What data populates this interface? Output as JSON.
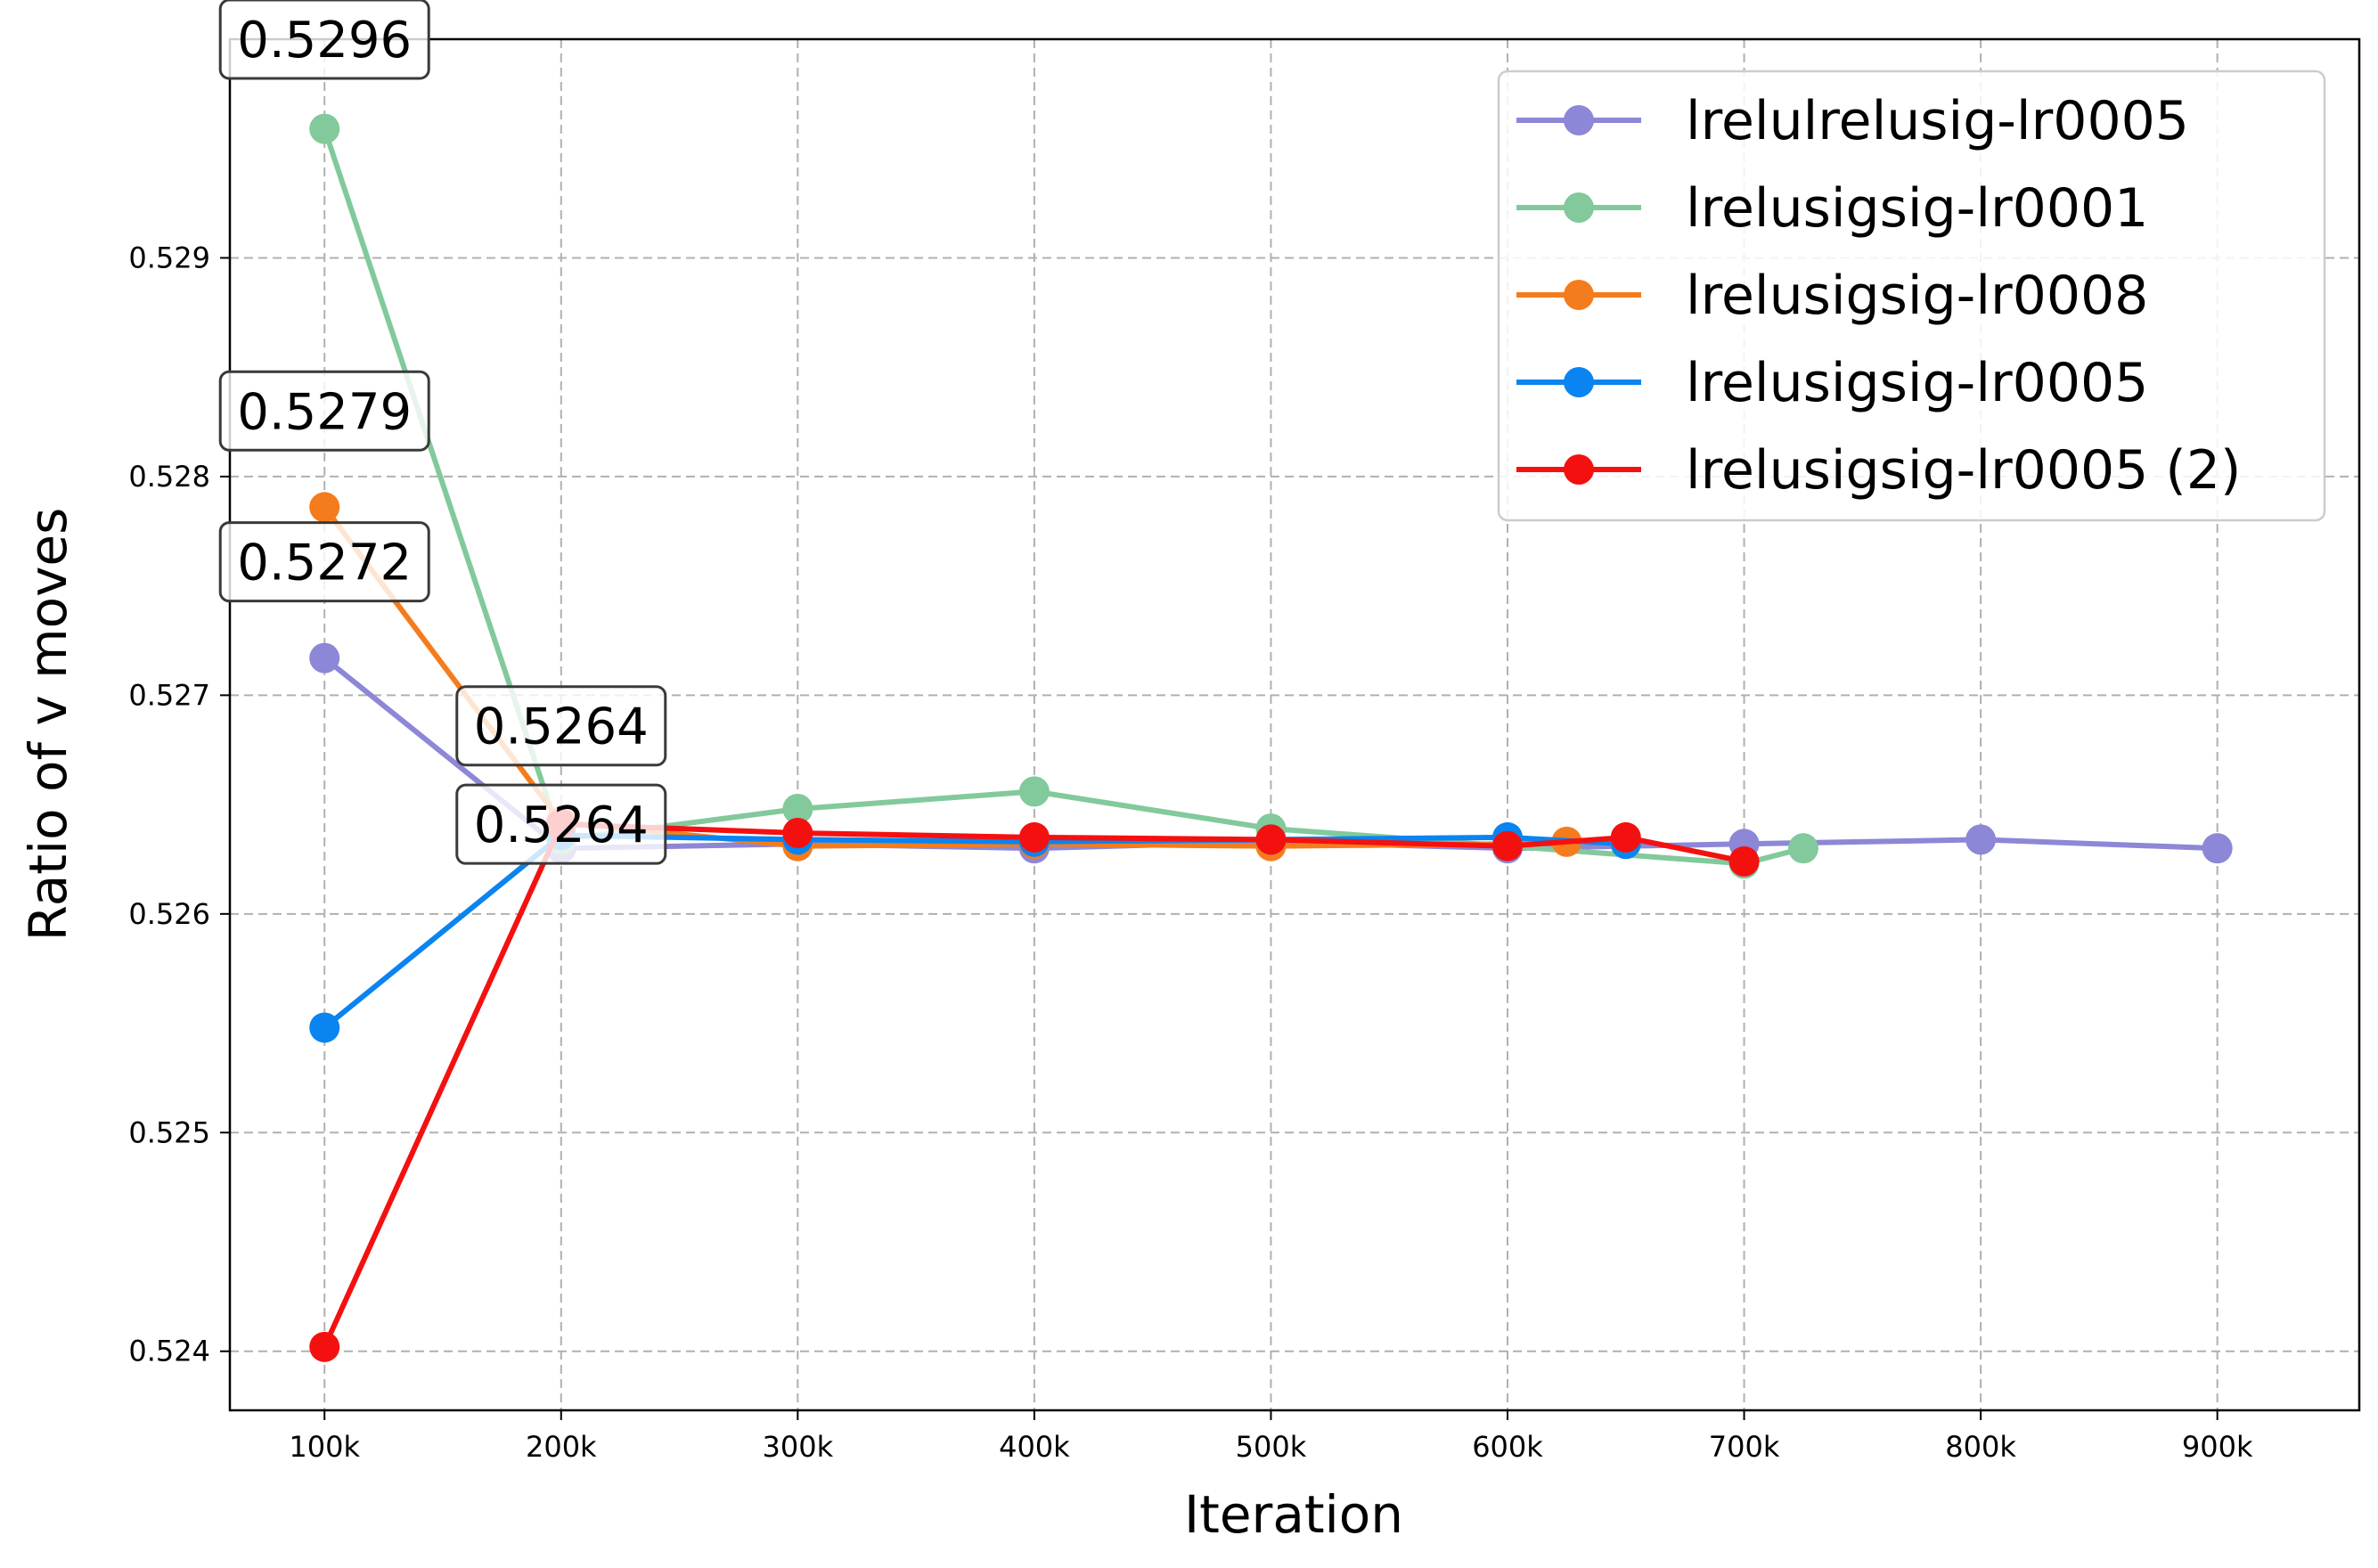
{
  "chart_data": {
    "type": "line",
    "title": "",
    "xlabel": "Iteration",
    "ylabel": "Ratio of v moves",
    "xlim": [
      60000,
      960000
    ],
    "ylim": [
      0.52373,
      0.53
    ],
    "x_ticks": [
      100000,
      200000,
      300000,
      400000,
      500000,
      600000,
      700000,
      800000,
      900000
    ],
    "x_tick_labels": [
      "100k",
      "200k",
      "300k",
      "400k",
      "500k",
      "600k",
      "700k",
      "800k",
      "900k"
    ],
    "y_ticks": [
      0.524,
      0.525,
      0.526,
      0.527,
      0.528,
      0.529
    ],
    "y_tick_labels": [
      "0.524",
      "0.525",
      "0.526",
      "0.527",
      "0.528",
      "0.529"
    ],
    "grid": true,
    "legend_position": "top-right",
    "series": [
      {
        "name": "lrelulrelusig-lr0005",
        "color": "#8c87d6",
        "x": [
          100000,
          200000,
          300000,
          400000,
          500000,
          600000,
          700000,
          800000,
          900000
        ],
        "y": [
          0.52717,
          0.5263,
          0.52632,
          0.5263,
          0.52633,
          0.5263,
          0.52632,
          0.52634,
          0.5263
        ]
      },
      {
        "name": "lrelusigsig-lr0001",
        "color": "#82c99b",
        "x": [
          100000,
          200000,
          300000,
          400000,
          500000,
          600000,
          700000,
          725000
        ],
        "y": [
          0.52959,
          0.52634,
          0.52648,
          0.52656,
          0.52639,
          0.52631,
          0.52623,
          0.5263
        ]
      },
      {
        "name": "lrelusigsig-lr0008",
        "color": "#f57c1c",
        "x": [
          100000,
          200000,
          300000,
          400000,
          500000,
          600000,
          625000
        ],
        "y": [
          0.52786,
          0.52642,
          0.52631,
          0.52632,
          0.52631,
          0.52632,
          0.52633
        ]
      },
      {
        "name": "lrelusigsig-lr0005",
        "color": "#0a84f0",
        "x": [
          100000,
          200000,
          300000,
          400000,
          500000,
          600000,
          650000
        ],
        "y": [
          0.52548,
          0.52636,
          0.52634,
          0.52633,
          0.52634,
          0.52635,
          0.52632
        ]
      },
      {
        "name": "lrelusigsig-lr0005 (2)",
        "color": "#f51010",
        "x": [
          100000,
          200000,
          300000,
          400000,
          500000,
          600000,
          650000,
          700000
        ],
        "y": [
          0.52402,
          0.52641,
          0.52637,
          0.52635,
          0.52634,
          0.52631,
          0.52635,
          0.52624
        ]
      }
    ],
    "annotations": [
      {
        "text": "0.5296",
        "x": 100000,
        "y": 0.53
      },
      {
        "text": "0.5279",
        "x": 100000,
        "y": 0.5283
      },
      {
        "text": "0.5272",
        "x": 100000,
        "y": 0.52761
      },
      {
        "text": "0.5264",
        "x": 200000,
        "y": 0.52641
      },
      {
        "text": "0.5264",
        "x": 200000,
        "y": 0.52686
      }
    ]
  }
}
